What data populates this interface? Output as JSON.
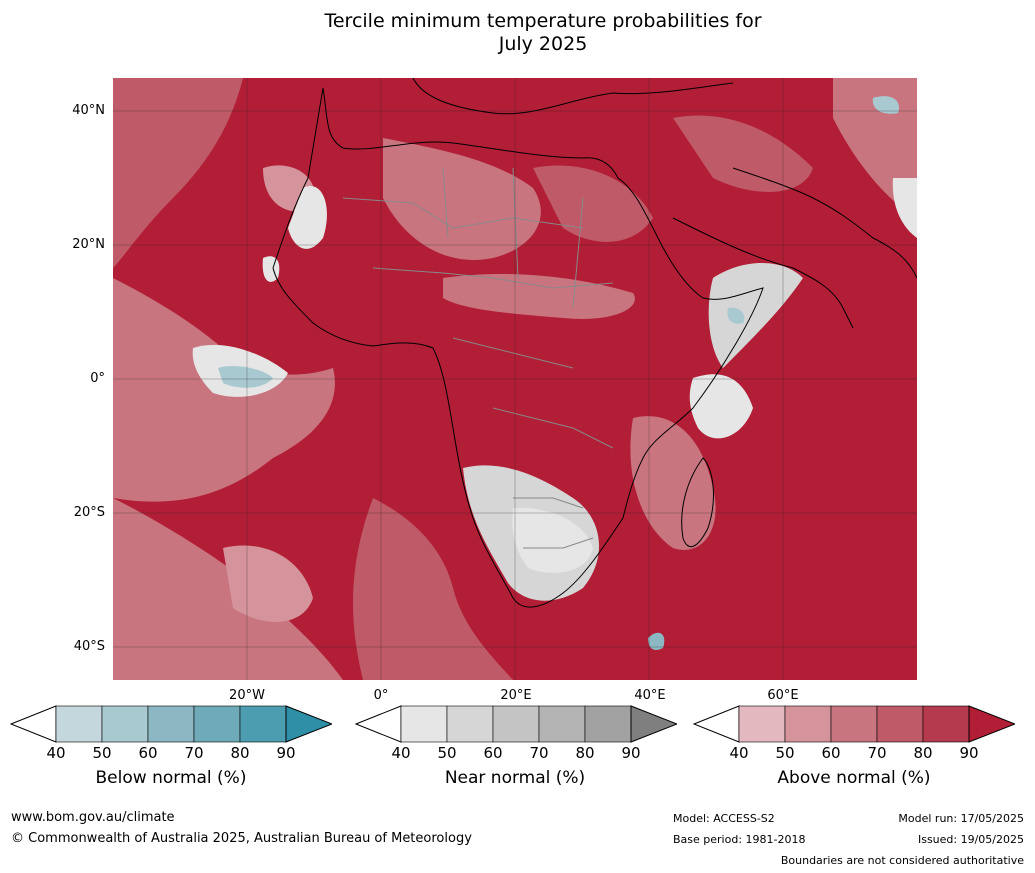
{
  "title_line1": "Tercile minimum temperature probabilities for",
  "title_line2": "July 2025",
  "lat_labels": [
    "40°N",
    "20°N",
    "0°",
    "20°S",
    "40°S"
  ],
  "lon_labels": [
    "20°W",
    "0°",
    "20°E",
    "40°E",
    "60°E"
  ],
  "colorbars": [
    {
      "title": "Below normal (%)",
      "ticks": [
        "40",
        "50",
        "60",
        "70",
        "80",
        "90"
      ],
      "colors": [
        "#ffffff",
        "#c3d7dc",
        "#a8c9d0",
        "#8bb8c3",
        "#6eaab8",
        "#4d9db0",
        "#2f8fa6"
      ]
    },
    {
      "title": "Near normal (%)",
      "ticks": [
        "40",
        "50",
        "60",
        "70",
        "80",
        "90"
      ],
      "colors": [
        "#ffffff",
        "#e6e6e6",
        "#d6d6d6",
        "#c4c4c4",
        "#b4b4b4",
        "#a2a2a2",
        "#7f7f7f"
      ]
    },
    {
      "title": "Above normal (%)",
      "ticks": [
        "40",
        "50",
        "60",
        "70",
        "80",
        "90"
      ],
      "colors": [
        "#ffffff",
        "#e3b8bf",
        "#d5939b",
        "#c97580",
        "#bf5a68",
        "#b63a4e",
        "#b21e36"
      ]
    }
  ],
  "footer": {
    "website": "www.bom.gov.au/climate",
    "copyright": "© Commonwealth of Australia 2025, Australian Bureau of Meteorology",
    "model": "Model: ACCESS-S2",
    "base_period": "Base period: 1981-2018",
    "model_run": "Model run: 17/05/2025",
    "issued": "Issued: 19/05/2025",
    "disclaimer": "Boundaries are not considered authoritative"
  }
}
